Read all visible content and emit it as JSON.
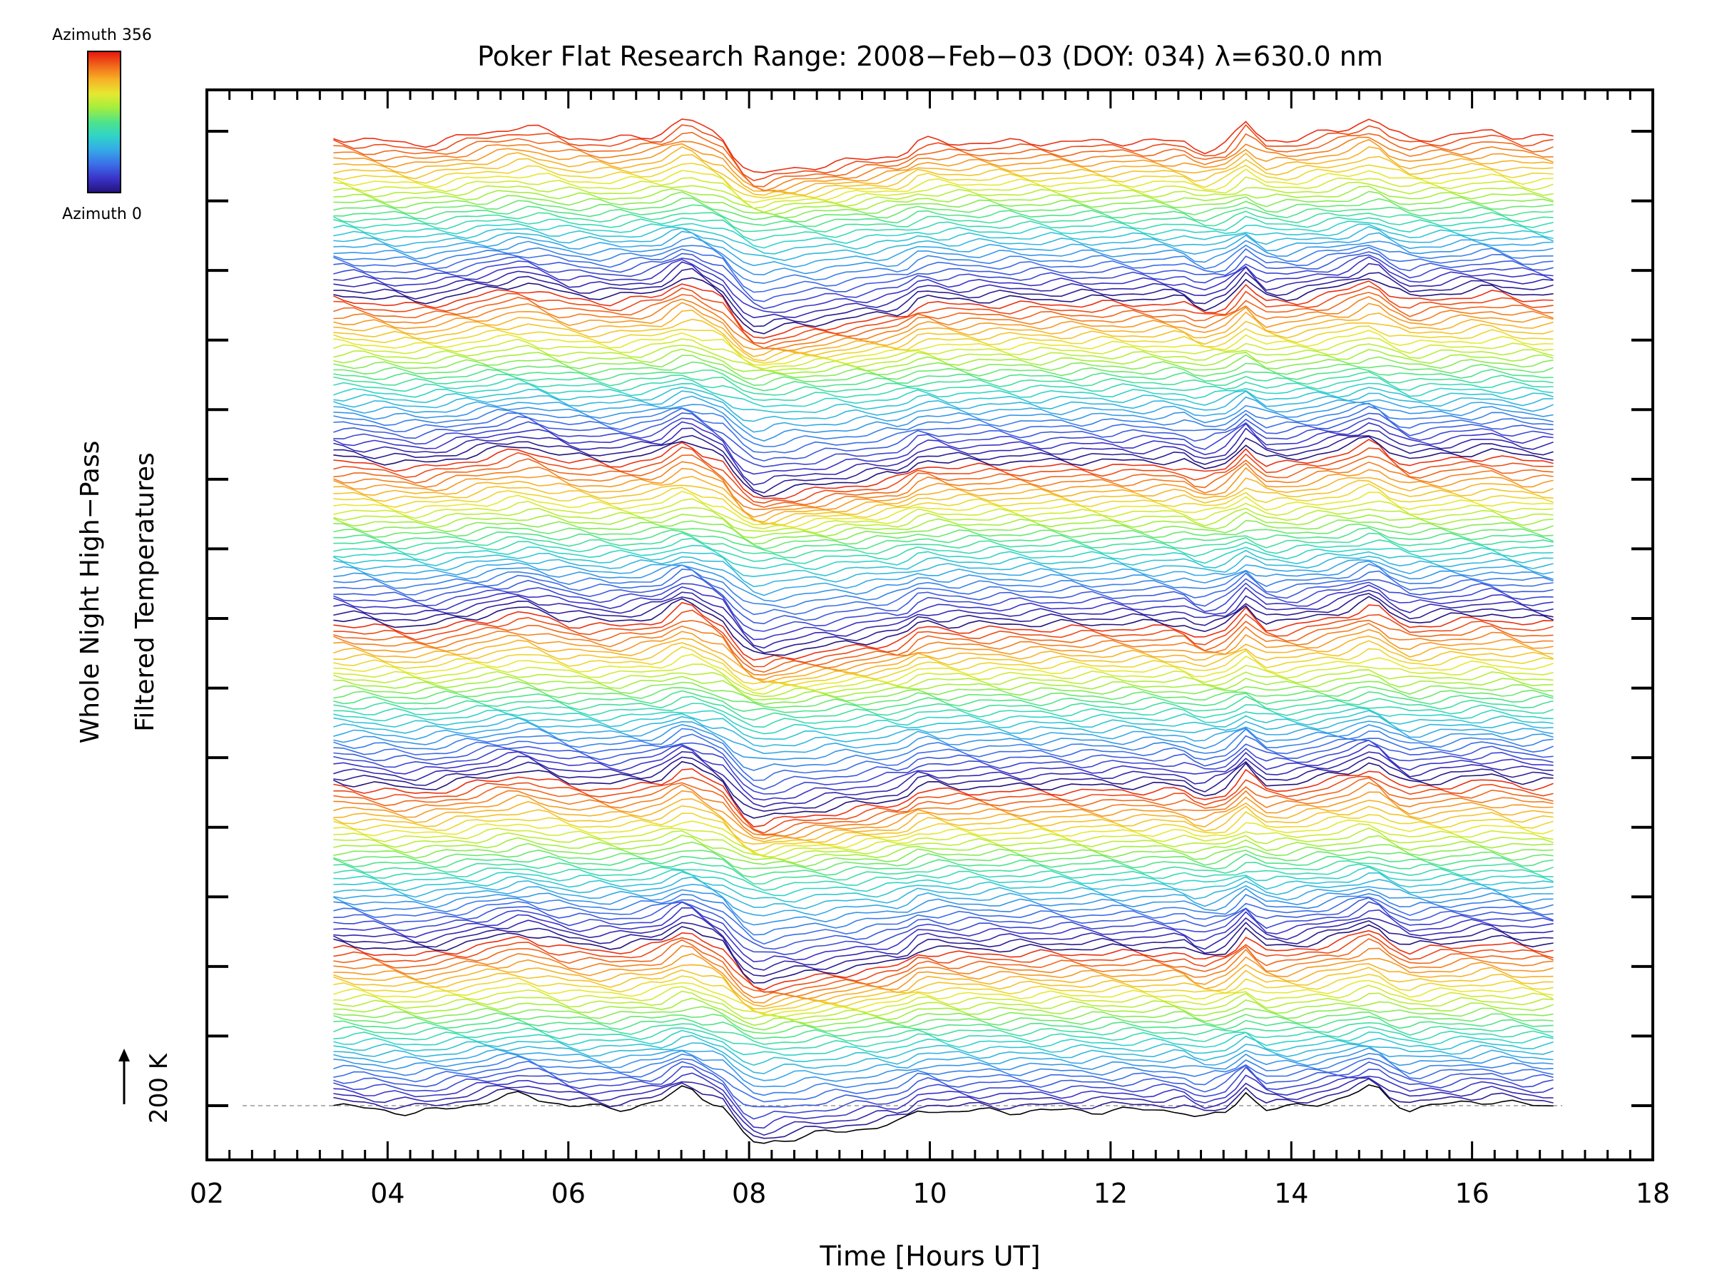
{
  "colorbar": {
    "top_label": "Azimuth 356",
    "bottom_label": "Azimuth 0",
    "colors": [
      "#e8140e",
      "#f0661a",
      "#f7b226",
      "#e6e830",
      "#a3ee3e",
      "#4fe38a",
      "#2fd4c8",
      "#35a8e8",
      "#3b6ee8",
      "#3a33c8",
      "#23127a"
    ]
  },
  "scale": {
    "label": "200 K"
  },
  "chart_data": {
    "type": "line",
    "title": "Poker Flat Research Range: 2008−Feb−03 (DOY: 034) λ=630.0 nm",
    "xlabel": "Time [Hours UT]",
    "ylabel_line1": "Whole Night High−Pass",
    "ylabel_line2": "Filtered Temperatures",
    "xlim": [
      2,
      18
    ],
    "x_ticks": [
      "02",
      "04",
      "06",
      "08",
      "10",
      "12",
      "14",
      "16",
      "18"
    ],
    "x_range_of_data": [
      3.4,
      16.9
    ],
    "y_scale_marker_K": 200,
    "trace_count": 180,
    "traces_per_azimuth_cycle": 30,
    "azimuth_range_deg": [
      0,
      356
    ],
    "trace_spacing_K": 25,
    "y_ticks_major_count": 15,
    "grid": false,
    "baseline_dashed": true,
    "common_profile": {
      "x": [
        3.4,
        4.3,
        4.5,
        5.5,
        6.0,
        6.5,
        7.0,
        7.3,
        7.5,
        7.7,
        7.9,
        8.1,
        8.3,
        9.0,
        9.7,
        9.9,
        10.2,
        12.8,
        13.0,
        13.3,
        13.5,
        13.7,
        14.0,
        14.6,
        14.9,
        15.1,
        15.3,
        16.2,
        16.6,
        16.9
      ],
      "y": [
        0,
        -5,
        -4,
        8,
        0,
        -2,
        2,
        14,
        6,
        0,
        -18,
        -28,
        -24,
        -18,
        -12,
        -2,
        -4,
        -3,
        -10,
        -4,
        10,
        -2,
        -2,
        6,
        14,
        4,
        -2,
        4,
        0,
        0
      ]
    }
  }
}
